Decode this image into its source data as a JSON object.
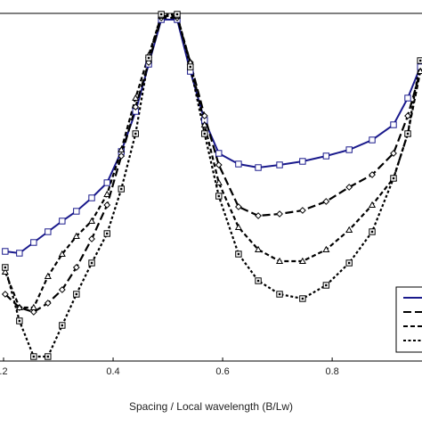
{
  "chart_data": {
    "type": "line",
    "xlabel": "Spacing / Local wavelength (B/Lw)",
    "x": [
      0.203,
      0.229,
      0.255,
      0.281,
      0.307,
      0.333,
      0.361,
      0.389,
      0.415,
      0.441,
      0.465,
      0.488,
      0.517,
      0.541,
      0.567,
      0.593,
      0.629,
      0.665,
      0.704,
      0.746,
      0.789,
      0.831,
      0.873,
      0.912,
      0.938,
      0.961
    ],
    "xlim": [
      0.1935,
      0.964
    ],
    "xticks": [
      {
        "value": 0.2,
        "label": ".2"
      },
      0.4,
      0.6,
      0.8
    ],
    "ylim": [
      0,
      390
    ],
    "legend": "lower right",
    "series": [
      {
        "color": "#1a1a8c",
        "style": "solid",
        "marker": "square",
        "values": [
          123,
          121,
          133,
          145,
          157,
          168,
          183,
          200,
          235,
          280,
          333,
          383,
          383,
          325,
          270,
          233,
          221,
          217,
          220,
          224,
          230,
          237,
          248,
          265,
          295,
          330
        ]
      },
      {
        "color": "#000000",
        "style": "longdash",
        "marker": "diamond",
        "values": [
          75,
          60,
          55,
          65,
          80,
          105,
          137,
          175,
          230,
          285,
          335,
          385,
          385,
          335,
          275,
          220,
          173,
          163,
          165,
          169,
          179,
          195,
          209,
          233,
          275,
          325
        ]
      },
      {
        "color": "#000000",
        "style": "shortdash",
        "marker": "triangle",
        "values": [
          100,
          60,
          60,
          95,
          120,
          140,
          157,
          187,
          237,
          295,
          343,
          387,
          387,
          335,
          265,
          200,
          150,
          125,
          112,
          112,
          125,
          147,
          175,
          205,
          255,
          325
        ]
      },
      {
        "color": "#000000",
        "style": "dotted",
        "marker": "dotsquare",
        "values": [
          105,
          45,
          5,
          5,
          40,
          75,
          110,
          143,
          193,
          255,
          340,
          389,
          389,
          330,
          255,
          185,
          120,
          90,
          75,
          70,
          85,
          110,
          145,
          205,
          255,
          337
        ]
      }
    ]
  }
}
